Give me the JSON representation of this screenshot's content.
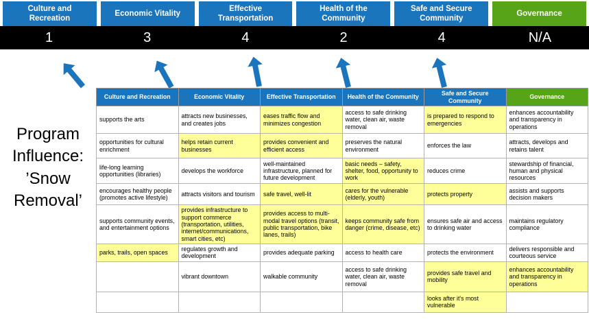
{
  "page_title": "Program Influence: ’Snow Removal’",
  "colors": {
    "blue": "#1b75bc",
    "green": "#58a419",
    "score_bar": "#000000",
    "highlight": "#ffff99"
  },
  "icons": {
    "arrow": "up-arrow"
  },
  "summary": {
    "columns": [
      {
        "label": "Culture and Recreation",
        "score": "1",
        "color": "blue"
      },
      {
        "label": "Economic Vitality",
        "score": "3",
        "color": "blue"
      },
      {
        "label": "Effective Transportation",
        "score": "4",
        "color": "blue"
      },
      {
        "label": "Health of the Community",
        "score": "2",
        "color": "blue"
      },
      {
        "label": "Safe and Secure Community",
        "score": "4",
        "color": "blue"
      },
      {
        "label": "Governance",
        "score": "N/A",
        "color": "green"
      }
    ]
  },
  "table": {
    "headers": [
      {
        "label": "Culture and Recreation",
        "color": "blue"
      },
      {
        "label": "Economic Vitality",
        "color": "blue"
      },
      {
        "label": "Effective Transportation",
        "color": "blue"
      },
      {
        "label": "Health of the Community",
        "color": "blue"
      },
      {
        "label": "Safe and Secure Community",
        "color": "blue"
      },
      {
        "label": "Governance",
        "color": "green"
      }
    ],
    "rows": [
      [
        {
          "t": "supports the arts"
        },
        {
          "t": "attracts new businesses, and creates jobs"
        },
        {
          "t": "eases traffic flow and minimizes congestion",
          "hl": true
        },
        {
          "t": "access to safe drinking water, clean air, waste removal"
        },
        {
          "t": "is prepared to respond to emergencies",
          "hl": true
        },
        {
          "t": "enhances accountability and transparency in operations"
        }
      ],
      [
        {
          "t": "opportunities for cultural enrichment"
        },
        {
          "t": "helps retain current businesses",
          "hl": true
        },
        {
          "t": "provides convenient and efficient access",
          "hl": true
        },
        {
          "t": "preserves the natural environment"
        },
        {
          "t": "enforces the law"
        },
        {
          "t": "attracts, develops and retains talent"
        }
      ],
      [
        {
          "t": "life-long learning opportunities (libraries)"
        },
        {
          "t": "develops the workforce"
        },
        {
          "t": "well-maintained infrastructure, planned for future development"
        },
        {
          "t": "basic needs – safety, shelter, food, opportunity to work",
          "hl": true
        },
        {
          "t": "reduces crime"
        },
        {
          "t": "stewardship of financial, human and physical resources"
        }
      ],
      [
        {
          "t": "encourages healthy people (promotes active lifestyle)"
        },
        {
          "t": "attracts visitors and tourism"
        },
        {
          "t": "safe travel, well-lit",
          "hl": true
        },
        {
          "t": "cares for the vulnerable (elderly, youth)",
          "hl": true
        },
        {
          "t": "protects property",
          "hl": true
        },
        {
          "t": "assists and supports decision makers"
        }
      ],
      [
        {
          "t": "supports community events, and entertainment options"
        },
        {
          "t": "provides infrastructure to support commerce (transportation, utilities, internet/communications, smart cities, etc)",
          "hl": true
        },
        {
          "t": "provides access to multi-modal travel options (transit, public transportation, bike lanes, trails)",
          "hl": true
        },
        {
          "t": "keeps community safe from danger (crime, disease, etc)",
          "hl": true
        },
        {
          "t": "ensures safe air and access to drinking water"
        },
        {
          "t": "maintains regulatory compliance"
        }
      ],
      [
        {
          "t": "parks, trails, open spaces",
          "hl": true
        },
        {
          "t": "regulates growth and development"
        },
        {
          "t": "provides adequate parking"
        },
        {
          "t": "access to health care"
        },
        {
          "t": "protects the environment"
        },
        {
          "t": "delivers responsible and courteous service"
        }
      ],
      [
        {
          "t": ""
        },
        {
          "t": "vibrant downtown"
        },
        {
          "t": "walkable community"
        },
        {
          "t": "access to safe drinking water, clean air, waste removal"
        },
        {
          "t": "provides safe travel and mobility",
          "hl": true
        },
        {
          "t": "enhances accountability and transparency in operations",
          "hl": true
        }
      ],
      [
        {
          "t": ""
        },
        {
          "t": ""
        },
        {
          "t": ""
        },
        {
          "t": ""
        },
        {
          "t": "looks after it's most vulnerable",
          "hl": true
        },
        {
          "t": ""
        }
      ]
    ]
  }
}
